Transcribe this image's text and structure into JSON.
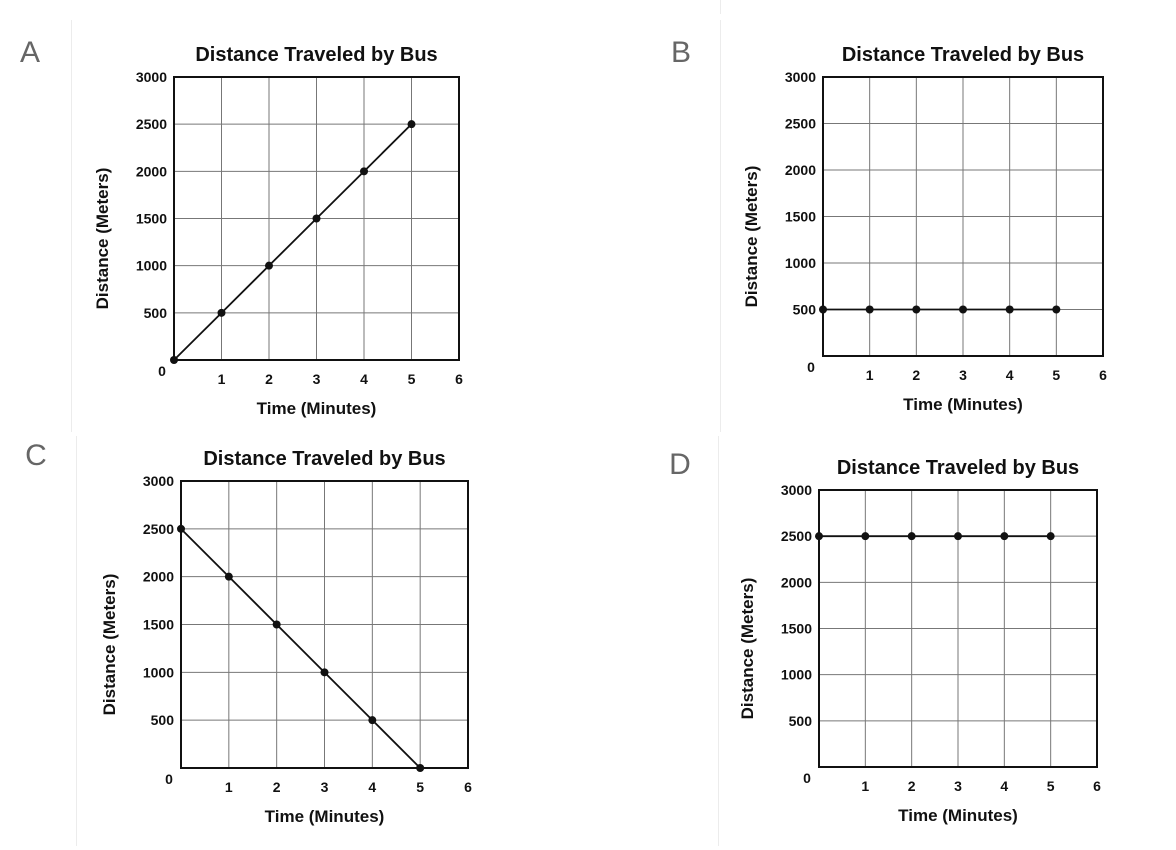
{
  "panels": [
    {
      "letter": "A"
    },
    {
      "letter": "B"
    },
    {
      "letter": "C"
    },
    {
      "letter": "D"
    }
  ],
  "chart_data": [
    {
      "type": "line",
      "title": "Distance Traveled by Bus",
      "xlabel": "Time (Minutes)",
      "ylabel": "Distance (Meters)",
      "xlim": [
        0,
        6
      ],
      "ylim": [
        0,
        3000
      ],
      "x_ticks": [
        "0",
        "1",
        "2",
        "3",
        "4",
        "5",
        "6"
      ],
      "y_ticks": [
        "500",
        "1000",
        "1500",
        "2000",
        "2500",
        "3000"
      ],
      "grid": true,
      "series": [
        {
          "x": [
            0,
            1,
            2,
            3,
            4,
            5
          ],
          "y": [
            0,
            500,
            1000,
            1500,
            2000,
            2500
          ]
        }
      ]
    },
    {
      "type": "line",
      "title": "Distance Traveled by Bus",
      "xlabel": "Time (Minutes)",
      "ylabel": "Distance (Meters)",
      "xlim": [
        0,
        6
      ],
      "ylim": [
        0,
        3000
      ],
      "x_ticks": [
        "0",
        "1",
        "2",
        "3",
        "4",
        "5",
        "6"
      ],
      "y_ticks": [
        "500",
        "1000",
        "1500",
        "2000",
        "2500",
        "3000"
      ],
      "grid": true,
      "series": [
        {
          "x": [
            0,
            1,
            2,
            3,
            4,
            5
          ],
          "y": [
            500,
            500,
            500,
            500,
            500,
            500
          ]
        }
      ]
    },
    {
      "type": "line",
      "title": "Distance Traveled by Bus",
      "xlabel": "Time (Minutes)",
      "ylabel": "Distance (Meters)",
      "xlim": [
        0,
        6
      ],
      "ylim": [
        0,
        3000
      ],
      "x_ticks": [
        "0",
        "1",
        "2",
        "3",
        "4",
        "5",
        "6"
      ],
      "y_ticks": [
        "500",
        "1000",
        "1500",
        "2000",
        "2500",
        "3000"
      ],
      "grid": true,
      "series": [
        {
          "x": [
            0,
            1,
            2,
            3,
            4,
            5
          ],
          "y": [
            2500,
            2000,
            1500,
            1000,
            500,
            0
          ]
        }
      ]
    },
    {
      "type": "line",
      "title": "Distance Traveled by Bus",
      "xlabel": "Time (Minutes)",
      "ylabel": "Distance (Meters)",
      "xlim": [
        0,
        6
      ],
      "ylim": [
        0,
        3000
      ],
      "x_ticks": [
        "0",
        "1",
        "2",
        "3",
        "4",
        "5",
        "6"
      ],
      "y_ticks": [
        "500",
        "1000",
        "1500",
        "2000",
        "2500",
        "3000"
      ],
      "grid": true,
      "series": [
        {
          "x": [
            0,
            1,
            2,
            3,
            4,
            5
          ],
          "y": [
            2500,
            2500,
            2500,
            2500,
            2500,
            2500
          ]
        }
      ]
    }
  ]
}
